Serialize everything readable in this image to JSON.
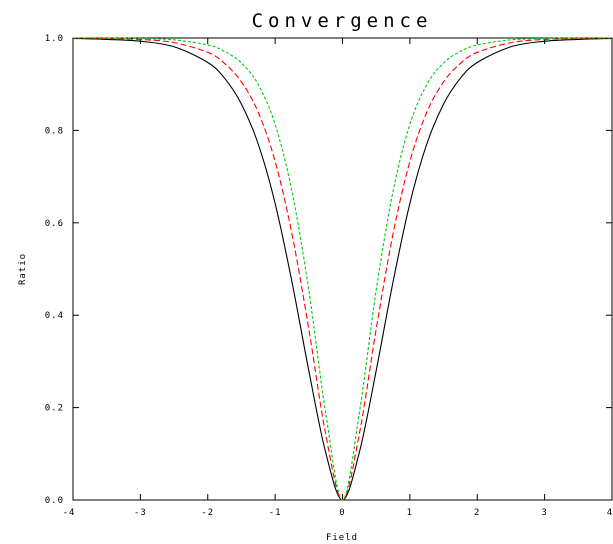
{
  "chart_data": {
    "type": "line",
    "title": "Convergence",
    "xlabel": "Field",
    "ylabel": "Ratio",
    "xlim": [
      -4,
      4
    ],
    "ylim": [
      0,
      1
    ],
    "x_ticks": [
      "-4",
      "-3",
      "-2",
      "-1",
      "0",
      "1",
      "2",
      "3",
      "4"
    ],
    "y_ticks": [
      "0.0",
      "0.2",
      "0.4",
      "0.6",
      "0.8",
      "1.0"
    ],
    "grid": false,
    "legend": "none",
    "x": [
      -4,
      -3.5,
      -3,
      -2.5,
      -2,
      -1.75,
      -1.5,
      -1.25,
      -1,
      -0.75,
      -0.5,
      -0.25,
      0,
      0.25,
      0.5,
      0.75,
      1,
      1.25,
      1.5,
      1.75,
      2,
      2.5,
      3,
      3.5,
      4
    ],
    "series": [
      {
        "color": "#000000",
        "style": "solid",
        "values": [
          0.999,
          0.997,
          0.993,
          0.981,
          0.947,
          0.913,
          0.857,
          0.77,
          0.642,
          0.472,
          0.28,
          0.103,
          0.0,
          0.103,
          0.28,
          0.472,
          0.642,
          0.77,
          0.857,
          0.913,
          0.947,
          0.981,
          0.993,
          0.997,
          0.999
        ]
      },
      {
        "color": "#ff0000",
        "style": "dashed",
        "values": [
          1.0,
          0.999,
          0.997,
          0.99,
          0.969,
          0.945,
          0.905,
          0.839,
          0.733,
          0.576,
          0.37,
          0.143,
          0.0,
          0.143,
          0.37,
          0.576,
          0.733,
          0.839,
          0.905,
          0.945,
          0.969,
          0.99,
          0.997,
          0.999,
          1.0
        ]
      },
      {
        "color": "#00cc00",
        "style": "dotted",
        "values": [
          1.0,
          1.0,
          0.999,
          0.996,
          0.985,
          0.971,
          0.946,
          0.899,
          0.813,
          0.668,
          0.454,
          0.189,
          0.0,
          0.189,
          0.454,
          0.668,
          0.813,
          0.899,
          0.946,
          0.971,
          0.985,
          0.996,
          0.999,
          1.0,
          1.0
        ]
      }
    ]
  }
}
